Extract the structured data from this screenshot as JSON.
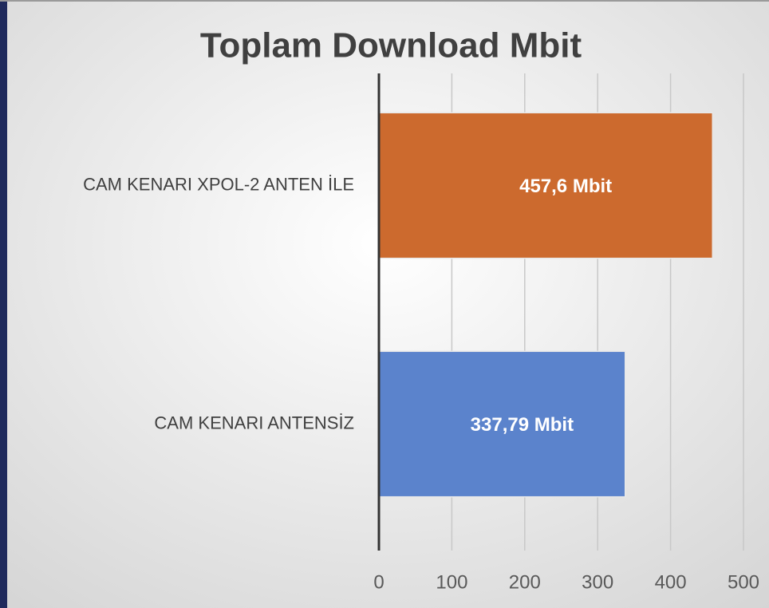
{
  "chart_data": {
    "type": "hbar",
    "title": "Toplam Download Mbit",
    "categories": [
      "CAM KENARI XPOL-2 ANTEN İLE",
      "CAM KENARI ANTENSİZ"
    ],
    "values": [
      457.6,
      337.79
    ],
    "value_labels": [
      "457,6 Mbit",
      "337,79 Mbit"
    ],
    "colors": [
      "#cc6a2e",
      "#5b83cc"
    ],
    "xlim": [
      0,
      500
    ],
    "xticks": [
      0,
      100,
      200,
      300,
      400,
      500
    ],
    "grid": true
  }
}
